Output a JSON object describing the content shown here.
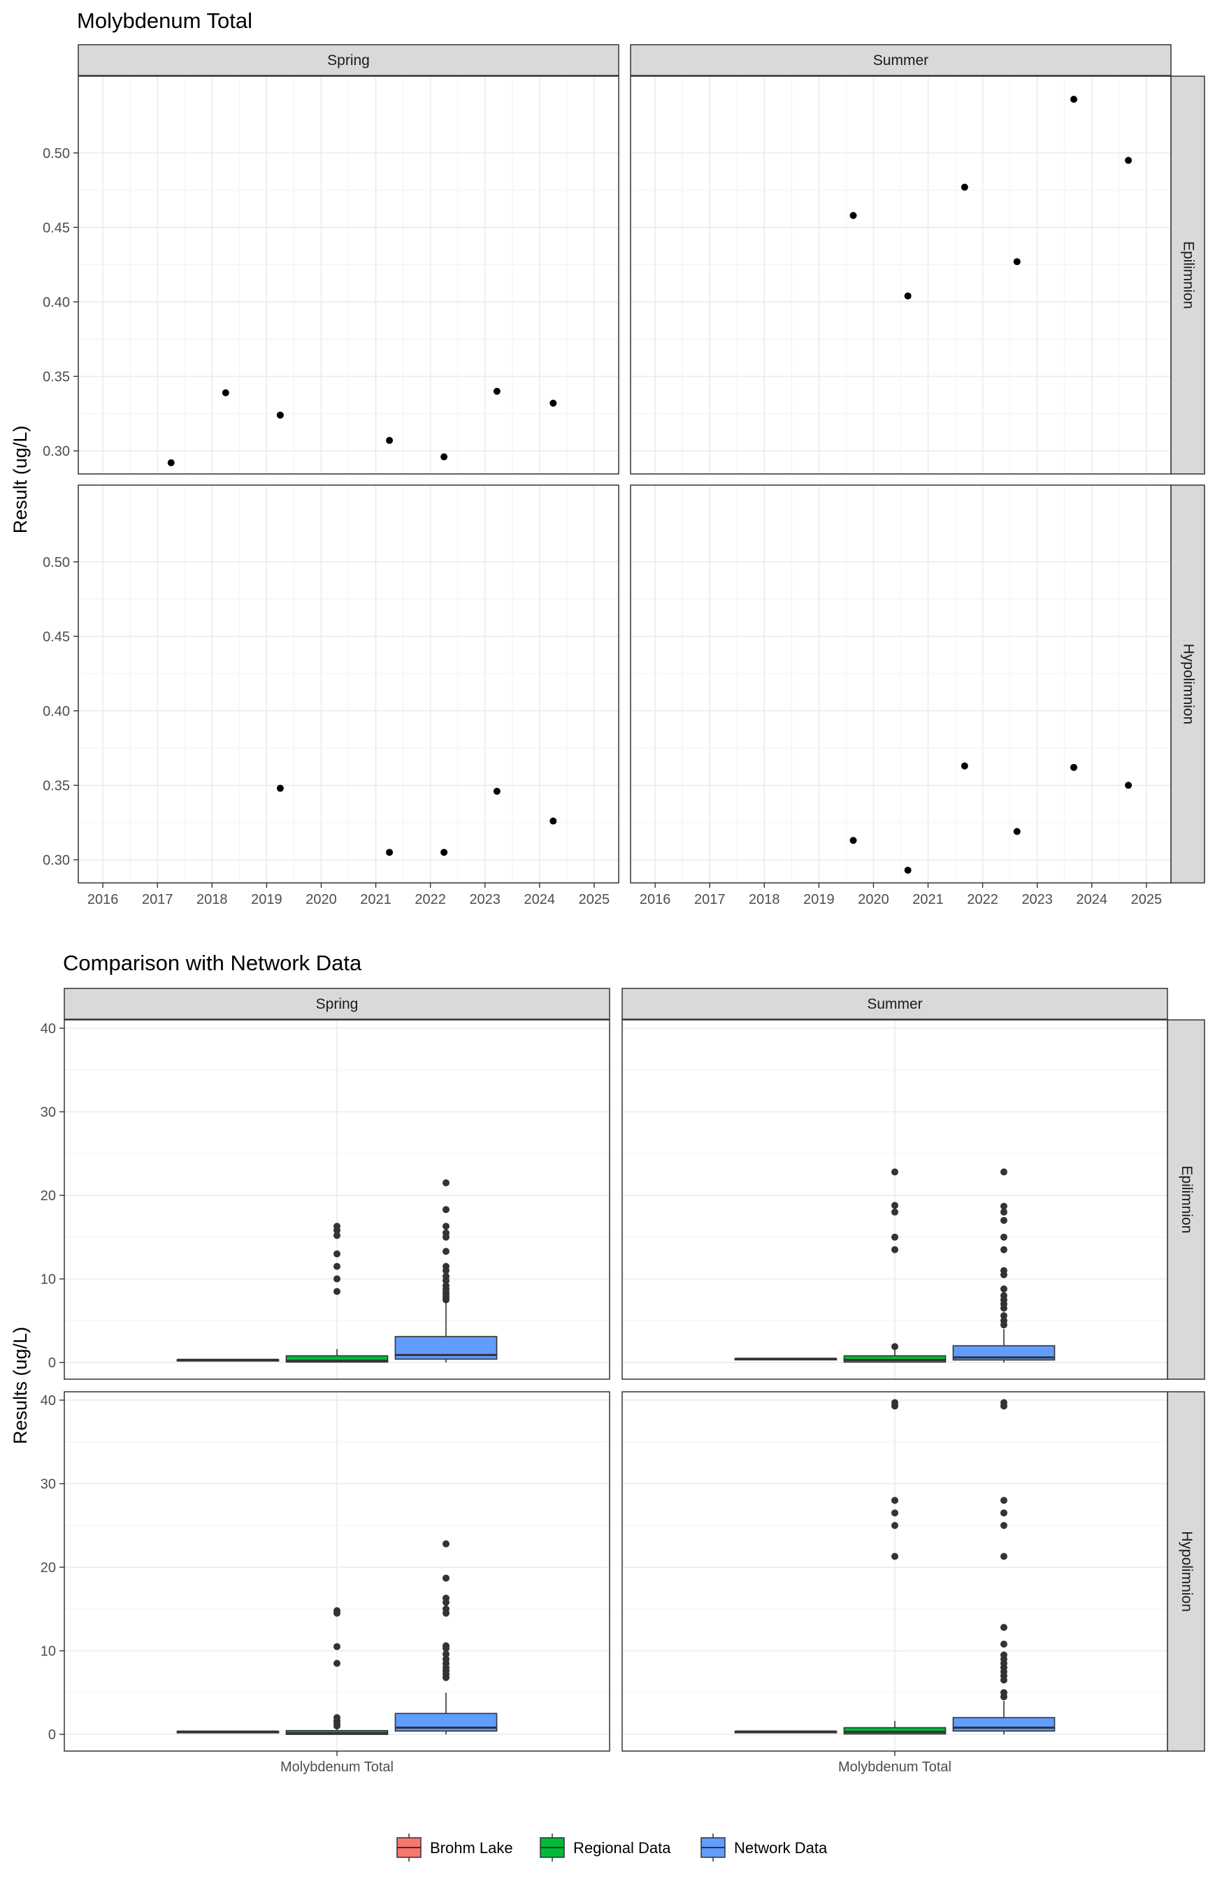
{
  "chart_data": [
    {
      "type": "scatter",
      "title": "Molybdenum Total",
      "ylabel": "Result (ug/L)",
      "xlabel": "",
      "columns": [
        "Spring",
        "Summer"
      ],
      "rows": [
        "Epilimnion",
        "Hypolimnion"
      ],
      "x_ticks": [
        2016,
        2017,
        2018,
        2019,
        2020,
        2021,
        2022,
        2023,
        2024,
        2025
      ],
      "xlim": [
        2015.55,
        2025.45
      ],
      "y_ticks": [
        0.3,
        0.35,
        0.4,
        0.45,
        0.5
      ],
      "ylim": [
        0.2845,
        0.5515
      ],
      "grid": true,
      "panels": [
        {
          "column": "Spring",
          "row": "Epilimnion",
          "points": [
            {
              "x": 2017.25,
              "y": 0.292
            },
            {
              "x": 2018.25,
              "y": 0.339
            },
            {
              "x": 2019.25,
              "y": 0.324
            },
            {
              "x": 2021.25,
              "y": 0.307
            },
            {
              "x": 2022.25,
              "y": 0.296
            },
            {
              "x": 2023.22,
              "y": 0.34
            },
            {
              "x": 2024.25,
              "y": 0.332
            }
          ]
        },
        {
          "column": "Summer",
          "row": "Epilimnion",
          "points": [
            {
              "x": 2019.63,
              "y": 0.458
            },
            {
              "x": 2020.63,
              "y": 0.404
            },
            {
              "x": 2021.67,
              "y": 0.477
            },
            {
              "x": 2022.63,
              "y": 0.427
            },
            {
              "x": 2023.67,
              "y": 0.536
            },
            {
              "x": 2024.67,
              "y": 0.495
            }
          ]
        },
        {
          "column": "Spring",
          "row": "Hypolimnion",
          "points": [
            {
              "x": 2019.25,
              "y": 0.348
            },
            {
              "x": 2021.25,
              "y": 0.305
            },
            {
              "x": 2022.25,
              "y": 0.305
            },
            {
              "x": 2023.22,
              "y": 0.346
            },
            {
              "x": 2024.25,
              "y": 0.326
            }
          ]
        },
        {
          "column": "Summer",
          "row": "Hypolimnion",
          "points": [
            {
              "x": 2019.63,
              "y": 0.313
            },
            {
              "x": 2020.63,
              "y": 0.293
            },
            {
              "x": 2021.67,
              "y": 0.363
            },
            {
              "x": 2022.63,
              "y": 0.319
            },
            {
              "x": 2023.67,
              "y": 0.362
            },
            {
              "x": 2024.67,
              "y": 0.35
            }
          ]
        }
      ]
    },
    {
      "type": "box",
      "title": "Comparison with Network Data",
      "ylabel": "Results (ug/L)",
      "category": "Molybdenum Total",
      "columns": [
        "Spring",
        "Summer"
      ],
      "rows": [
        "Epilimnion",
        "Hypolimnion"
      ],
      "y_ticks": [
        0,
        10,
        20,
        30,
        40
      ],
      "ylim": [
        -2,
        41
      ],
      "grid": true,
      "legend_position": "bottom",
      "series": [
        {
          "name": "Brohm Lake",
          "color": "#f8766d"
        },
        {
          "name": "Regional Data",
          "color": "#00ba38"
        },
        {
          "name": "Network Data",
          "color": "#619cff"
        }
      ],
      "panels": [
        {
          "column": "Spring",
          "row": "Epilimnion",
          "boxes": [
            {
              "series": "Brohm Lake",
              "q1": 0.29,
              "median": 0.32,
              "q3": 0.34,
              "whisker_low": 0.29,
              "whisker_high": 0.34,
              "outliers": []
            },
            {
              "series": "Regional Data",
              "q1": 0.05,
              "median": 0.2,
              "q3": 0.8,
              "whisker_low": 0.0,
              "whisker_high": 1.6,
              "outliers": [
                8.5,
                10.0,
                11.5,
                13.0,
                15.2,
                15.8,
                16.3
              ]
            },
            {
              "series": "Network Data",
              "q1": 0.4,
              "median": 0.9,
              "q3": 3.1,
              "whisker_low": 0.0,
              "whisker_high": 7.2,
              "outliers": [
                7.5,
                7.8,
                8.1,
                8.4,
                8.8,
                9.2,
                9.8,
                10.3,
                11.0,
                11.5,
                13.3,
                15.0,
                15.5,
                16.3,
                18.3,
                21.5
              ]
            }
          ]
        },
        {
          "column": "Summer",
          "row": "Epilimnion",
          "boxes": [
            {
              "series": "Brohm Lake",
              "q1": 0.42,
              "median": 0.45,
              "q3": 0.48,
              "whisker_low": 0.4,
              "whisker_high": 0.54,
              "outliers": []
            },
            {
              "series": "Regional Data",
              "q1": 0.05,
              "median": 0.3,
              "q3": 0.8,
              "whisker_low": 0.0,
              "whisker_high": 1.6,
              "outliers": [
                1.9,
                13.5,
                15.0,
                18.0,
                18.8,
                22.8
              ]
            },
            {
              "series": "Network Data",
              "q1": 0.3,
              "median": 0.6,
              "q3": 2.0,
              "whisker_low": 0.0,
              "whisker_high": 4.0,
              "outliers": [
                4.5,
                5.0,
                5.6,
                6.5,
                7.0,
                7.5,
                8.0,
                8.8,
                10.5,
                11.0,
                13.5,
                15.0,
                17.0,
                18.0,
                18.7,
                22.8
              ]
            }
          ]
        },
        {
          "column": "Spring",
          "row": "Hypolimnion",
          "boxes": [
            {
              "series": "Brohm Lake",
              "q1": 0.31,
              "median": 0.33,
              "q3": 0.35,
              "whisker_low": 0.3,
              "whisker_high": 0.35,
              "outliers": []
            },
            {
              "series": "Regional Data",
              "q1": 0.0,
              "median": 0.15,
              "q3": 0.45,
              "whisker_low": 0.0,
              "whisker_high": 0.9,
              "outliers": [
                1.0,
                1.3,
                1.6,
                2.0,
                8.5,
                10.5,
                14.5,
                14.8
              ]
            },
            {
              "series": "Network Data",
              "q1": 0.4,
              "median": 0.8,
              "q3": 2.5,
              "whisker_low": 0.0,
              "whisker_high": 5.0,
              "outliers": [
                6.8,
                7.2,
                7.6,
                8.0,
                8.5,
                9.0,
                9.6,
                10.3,
                10.6,
                14.5,
                15.0,
                15.8,
                16.3,
                18.7,
                22.8
              ]
            }
          ]
        },
        {
          "column": "Summer",
          "row": "Hypolimnion",
          "boxes": [
            {
              "series": "Brohm Lake",
              "q1": 0.31,
              "median": 0.34,
              "q3": 0.36,
              "whisker_low": 0.29,
              "whisker_high": 0.36,
              "outliers": []
            },
            {
              "series": "Regional Data",
              "q1": 0.05,
              "median": 0.3,
              "q3": 0.8,
              "whisker_low": 0.0,
              "whisker_high": 1.6,
              "outliers": [
                21.3,
                25.0,
                26.5,
                28.0,
                39.3,
                39.7
              ]
            },
            {
              "series": "Network Data",
              "q1": 0.4,
              "median": 0.8,
              "q3": 2.0,
              "whisker_low": 0.0,
              "whisker_high": 4.0,
              "outliers": [
                4.5,
                5.0,
                6.5,
                7.0,
                7.5,
                8.0,
                8.5,
                9.0,
                9.5,
                10.8,
                12.8,
                21.3,
                25.0,
                26.5,
                28.0,
                39.3,
                39.7
              ]
            }
          ]
        }
      ]
    }
  ]
}
